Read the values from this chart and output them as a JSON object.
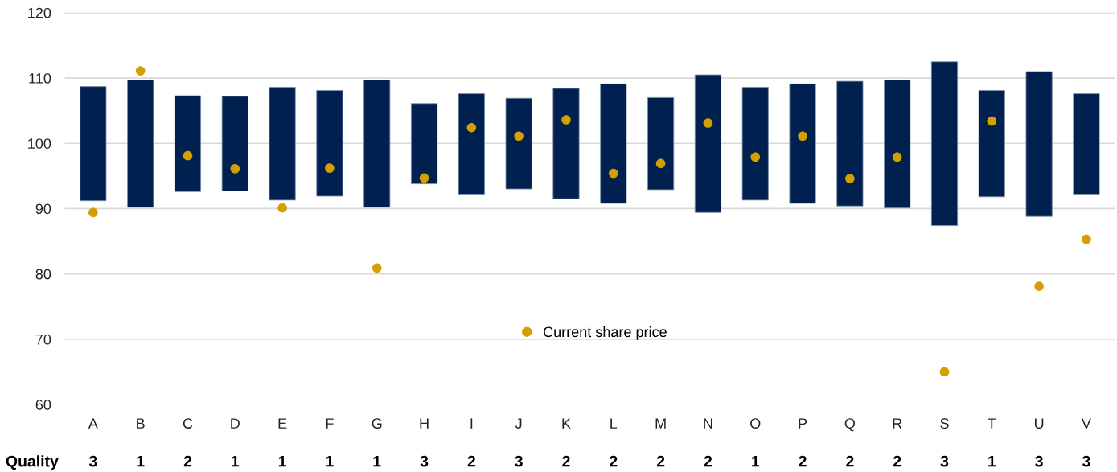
{
  "chart_data": {
    "type": "bar",
    "categories": [
      "A",
      "B",
      "C",
      "D",
      "E",
      "F",
      "G",
      "H",
      "I",
      "J",
      "K",
      "L",
      "M",
      "N",
      "O",
      "P",
      "Q",
      "R",
      "S",
      "T",
      "U",
      "V"
    ],
    "series": [
      {
        "color": "#00204f",
        "base": [
          91.2,
          90.2,
          92.6,
          92.7,
          91.3,
          91.9,
          90.2,
          93.8,
          92.2,
          93.0,
          91.5,
          90.8,
          92.9,
          89.4,
          91.3,
          90.8,
          90.4,
          90.1,
          87.4,
          91.8,
          88.8,
          92.2
        ],
        "values": [
          17.5,
          19.5,
          14.7,
          14.5,
          17.3,
          16.2,
          19.5,
          12.3,
          15.4,
          13.9,
          16.9,
          18.3,
          14.1,
          21.1,
          17.3,
          18.3,
          19.1,
          19.6,
          25.1,
          16.3,
          22.2,
          15.4
        ]
      },
      {
        "type": "scatter",
        "name": "Current share price",
        "color": "#d4a000",
        "values": [
          89.4,
          111.1,
          98.1,
          96.1,
          90.1,
          96.2,
          80.9,
          94.7,
          102.4,
          101.1,
          103.6,
          95.4,
          96.9,
          103.1,
          97.9,
          101.1,
          94.6,
          97.9,
          65.0,
          103.4,
          78.1,
          85.3
        ]
      }
    ],
    "ylim": [
      60,
      120
    ],
    "yticks": [
      60,
      70,
      80,
      90,
      100,
      110,
      120
    ],
    "grid": "y",
    "legend": "bottom",
    "marker": "circle",
    "annotations": [
      "Quality",
      "3",
      "1",
      "2",
      "1",
      "1",
      "1",
      "1",
      "3",
      "2",
      "3",
      "2",
      "2",
      "2",
      "2",
      "1",
      "2",
      "2",
      "2",
      "3",
      "1",
      "3",
      "3"
    ]
  }
}
